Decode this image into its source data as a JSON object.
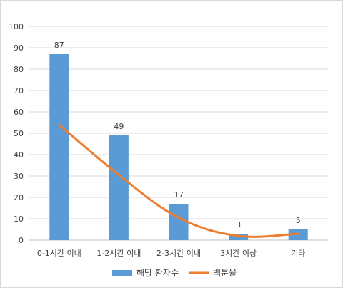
{
  "chart_data": {
    "type": "bar",
    "categories": [
      "0-1시간 이내",
      "1-2시간 이내",
      "2-3시간 이내",
      "3시간 이상",
      "기타"
    ],
    "ylim": [
      0,
      100
    ],
    "y_ticks": [
      0,
      10,
      20,
      30,
      40,
      50,
      60,
      70,
      80,
      90,
      100
    ],
    "grid": true,
    "legend_position": "bottom",
    "series": [
      {
        "name": "해당 환자수",
        "kind": "bar",
        "color": "#5b9bd5",
        "values": [
          87,
          49,
          17,
          3,
          5
        ],
        "data_labels": [
          "87",
          "49",
          "17",
          "3",
          "5"
        ]
      },
      {
        "name": "백분율",
        "kind": "line",
        "color": "#ed7d31",
        "values": [
          54,
          30.5,
          10.5,
          2,
          3
        ]
      }
    ]
  }
}
